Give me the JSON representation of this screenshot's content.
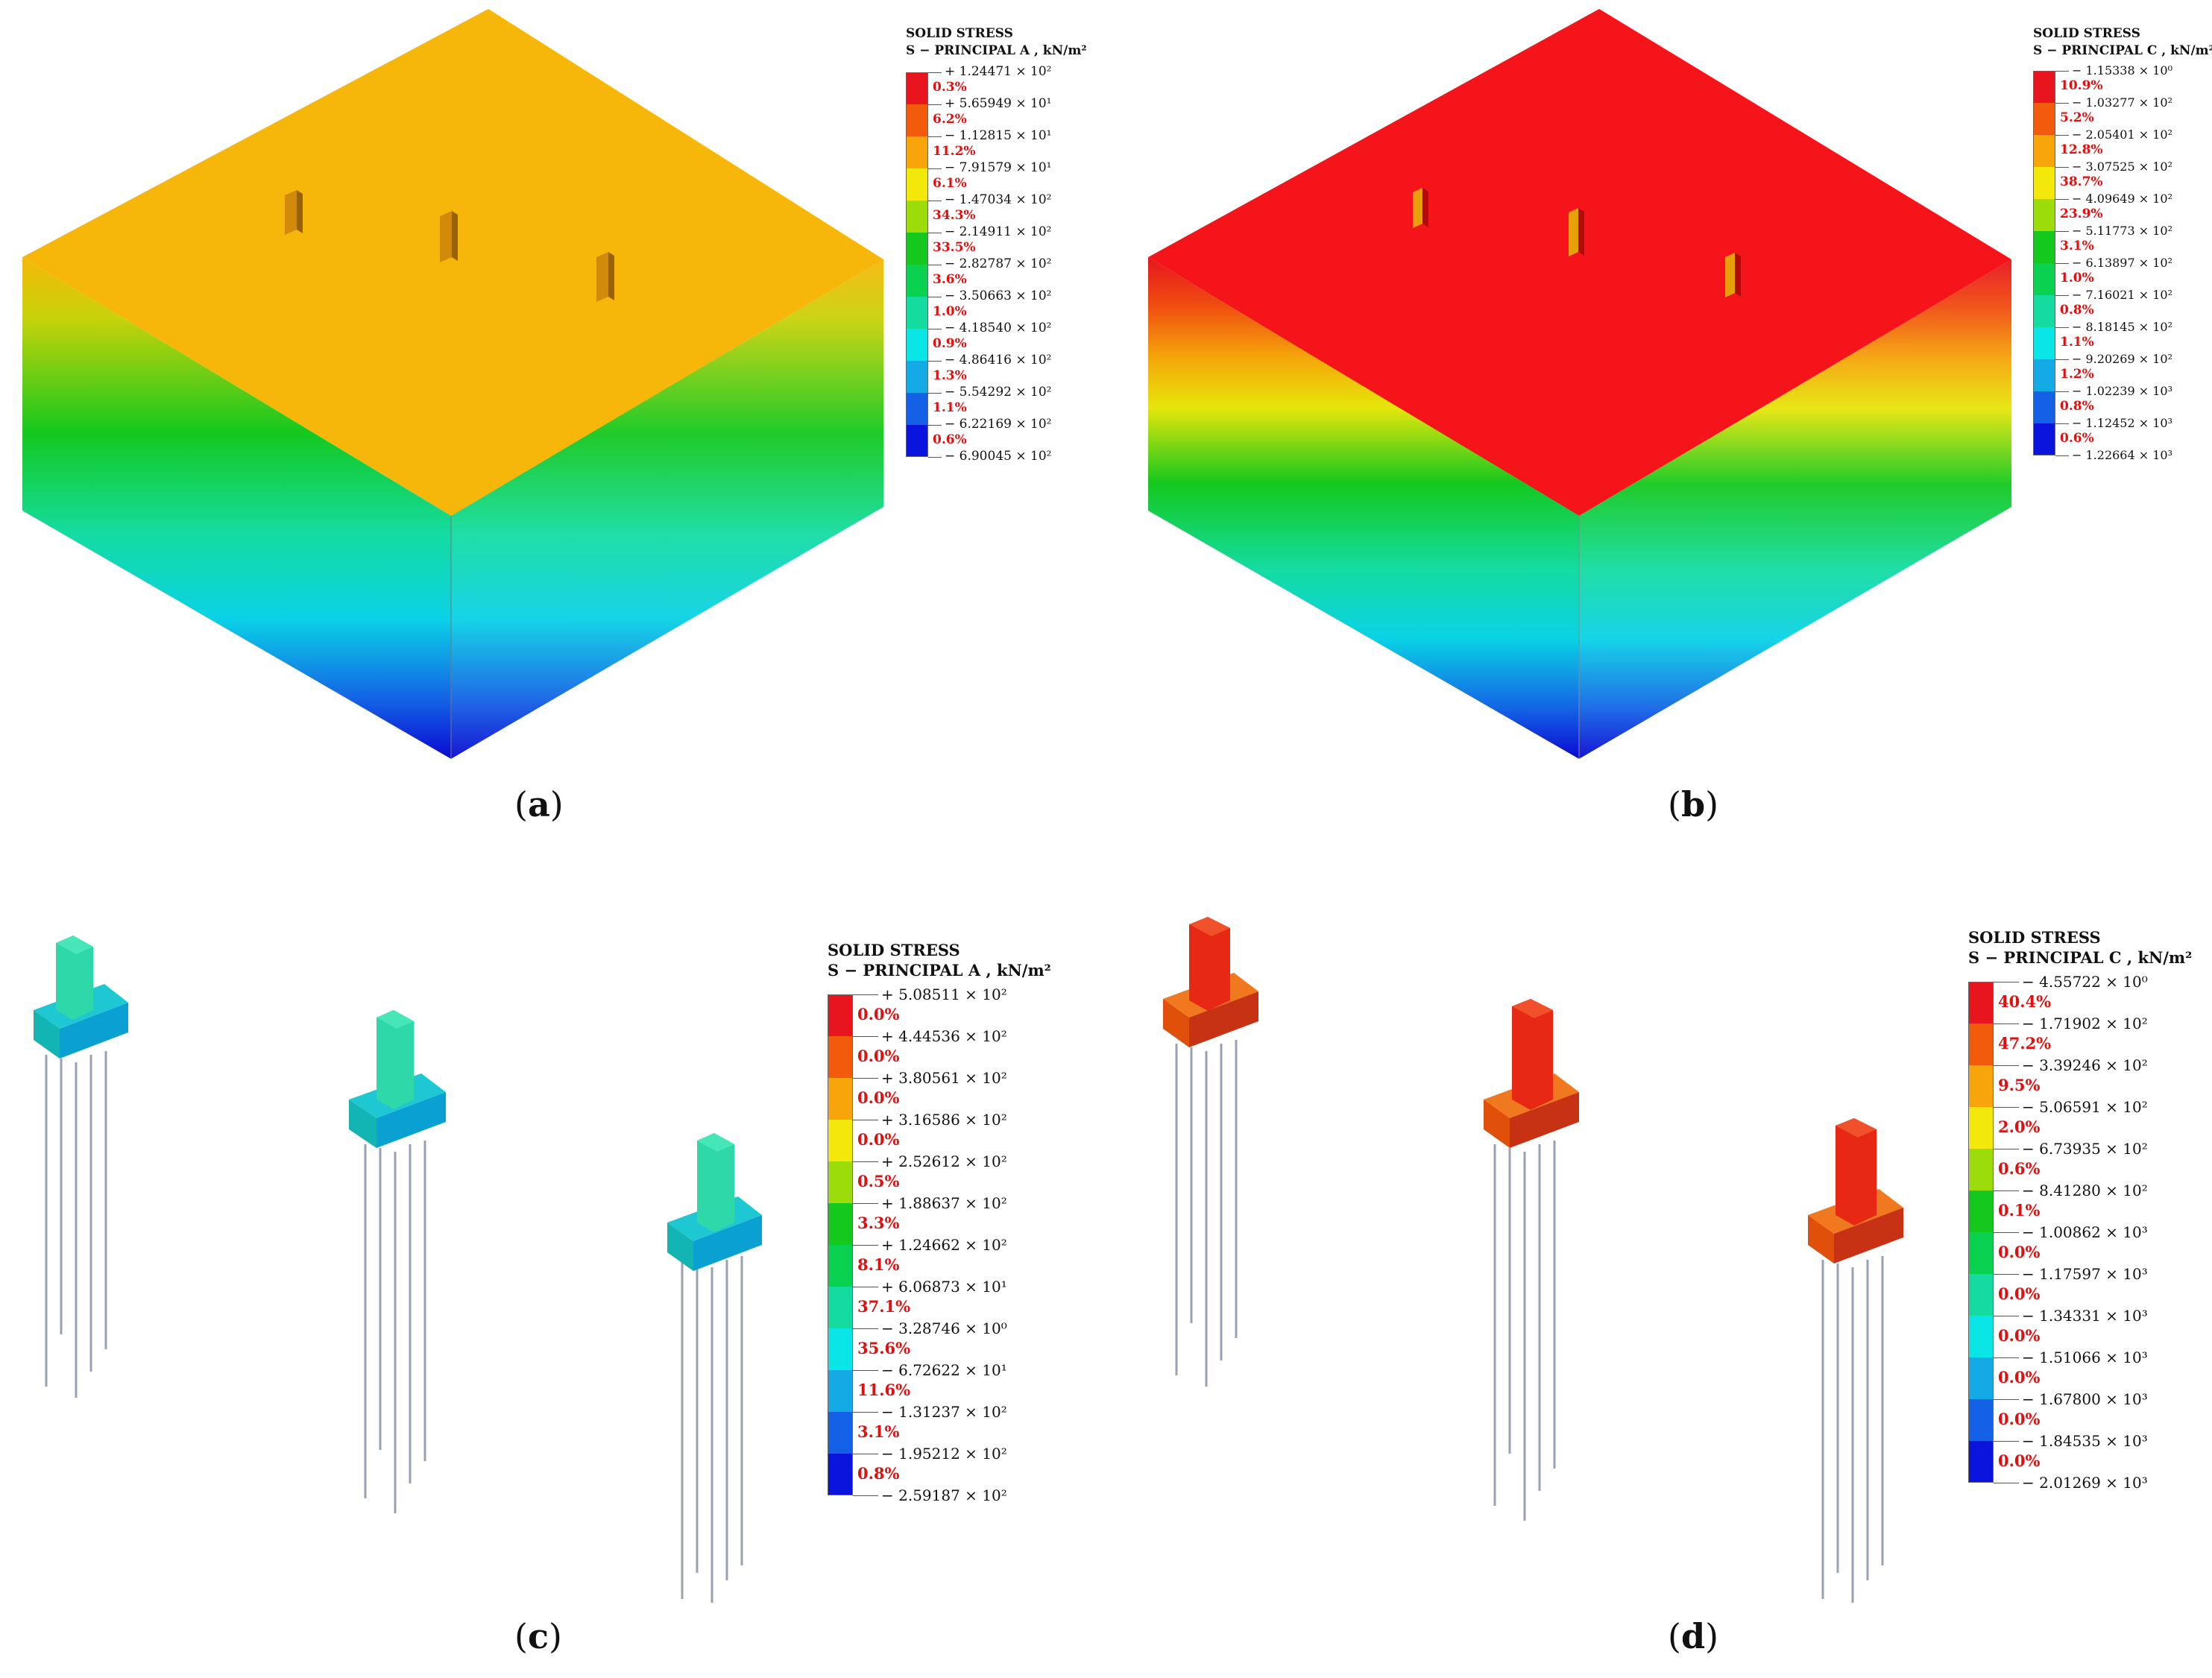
{
  "colors": [
    "#e8141e",
    "#f25a0c",
    "#f7a50a",
    "#f2e80a",
    "#9bdc0a",
    "#14c81e",
    "#0ad250",
    "#14dca0",
    "#0ae6e6",
    "#14aae6",
    "#1460e6",
    "#0a14dc"
  ],
  "panels": [
    {
      "id": "a",
      "label": "a",
      "legend": {
        "title1": "SOLID STRESS",
        "title2": "S − PRINCIPAL A , kN/m²",
        "values": [
          "+ 1.24471 × 10²",
          "+ 5.65949 × 10¹",
          "− 1.12815 × 10¹",
          "− 7.91579 × 10¹",
          "− 1.47034 × 10²",
          "− 2.14911 × 10²",
          "− 2.82787 × 10²",
          "− 3.50663 × 10²",
          "− 4.18540 × 10²",
          "− 4.86416 × 10²",
          "− 5.54292 × 10²",
          "− 6.22169 × 10²",
          "− 6.90045 × 10²"
        ],
        "percents": [
          "0.3%",
          "6.2%",
          "11.2%",
          "6.1%",
          "34.3%",
          "33.5%",
          "3.6%",
          "1.0%",
          "0.9%",
          "1.3%",
          "1.1%",
          "0.6%"
        ]
      }
    },
    {
      "id": "b",
      "label": "b",
      "legend": {
        "title1": "SOLID STRESS",
        "title2": "S − PRINCIPAL C , kN/m²",
        "values": [
          "− 1.15338 × 10⁰",
          "− 1.03277 × 10²",
          "− 2.05401 × 10²",
          "− 3.07525 × 10²",
          "− 4.09649 × 10²",
          "− 5.11773 × 10²",
          "− 6.13897 × 10²",
          "− 7.16021 × 10²",
          "− 8.18145 × 10²",
          "− 9.20269 × 10²",
          "− 1.02239 × 10³",
          "− 1.12452 × 10³",
          "− 1.22664 × 10³"
        ],
        "percents": [
          "10.9%",
          "5.2%",
          "12.8%",
          "38.7%",
          "23.9%",
          "3.1%",
          "1.0%",
          "0.8%",
          "1.1%",
          "1.2%",
          "0.8%",
          "0.6%"
        ]
      }
    },
    {
      "id": "c",
      "label": "c",
      "legend": {
        "title1": "SOLID STRESS",
        "title2": "S − PRINCIPAL A , kN/m²",
        "values": [
          "+ 5.08511 × 10²",
          "+ 4.44536 × 10²",
          "+ 3.80561 × 10²",
          "+ 3.16586 × 10²",
          "+ 2.52612 × 10²",
          "+ 1.88637 × 10²",
          "+ 1.24662 × 10²",
          "+ 6.06873 × 10¹",
          "− 3.28746 × 10⁰",
          "− 6.72622 × 10¹",
          "− 1.31237 × 10²",
          "− 1.95212 × 10²",
          "− 2.59187 × 10²"
        ],
        "percents": [
          "0.0%",
          "0.0%",
          "0.0%",
          "0.0%",
          "0.5%",
          "3.3%",
          "8.1%",
          "37.1%",
          "35.6%",
          "11.6%",
          "3.1%",
          "0.8%"
        ]
      }
    },
    {
      "id": "d",
      "label": "d",
      "legend": {
        "title1": "SOLID STRESS",
        "title2": "S − PRINCIPAL C , kN/m²",
        "values": [
          "− 4.55722 × 10⁰",
          "− 1.71902 × 10²",
          "− 3.39246 × 10²",
          "− 5.06591 × 10²",
          "− 6.73935 × 10²",
          "− 8.41280 × 10²",
          "− 1.00862 × 10³",
          "− 1.17597 × 10³",
          "− 1.34331 × 10³",
          "− 1.51066 × 10³",
          "− 1.67800 × 10³",
          "− 1.84535 × 10³",
          "− 2.01269 × 10³"
        ],
        "percents": [
          "40.4%",
          "47.2%",
          "9.5%",
          "2.0%",
          "0.6%",
          "0.1%",
          "0.0%",
          "0.0%",
          "0.0%",
          "0.0%",
          "0.0%",
          "0.0%"
        ]
      }
    }
  ]
}
